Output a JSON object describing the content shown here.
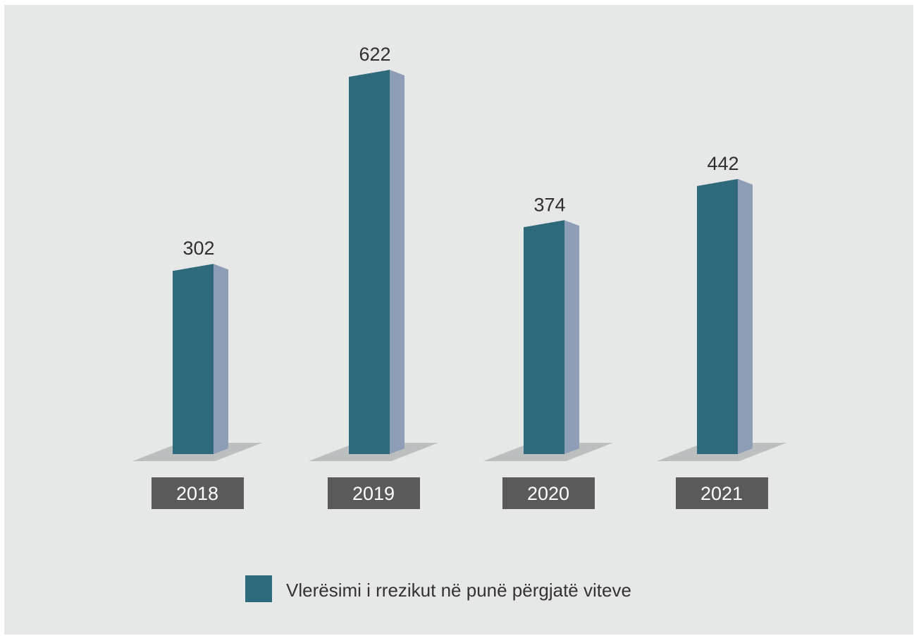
{
  "chart_data": {
    "type": "bar",
    "title": "",
    "xlabel": "",
    "ylabel": "",
    "categories": [
      "2018",
      "2019",
      "2020",
      "2021"
    ],
    "series": [
      {
        "name": "Vlerësimi i rrezikut në punë përgjatë viteve",
        "values": [
          302,
          622,
          374,
          442
        ]
      }
    ],
    "ylim": [
      0,
      622
    ],
    "grid": false,
    "legend": "bottom-center",
    "style": "3d-bar"
  },
  "colors": {
    "background": "#e6e7e7",
    "bar_front": "#2e6a7b",
    "bar_side": "#8e9eb6",
    "floor": "#bdbec0",
    "year_box": "#5a5a5a",
    "year_text": "#ffffff",
    "value_text": "#2f2f2f"
  }
}
